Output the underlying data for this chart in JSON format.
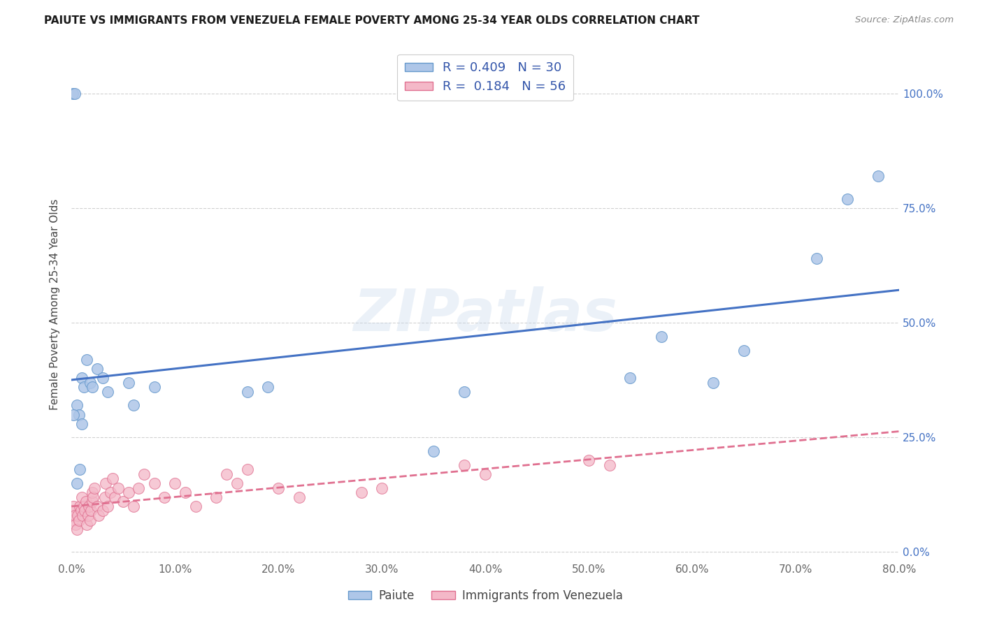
{
  "title": "PAIUTE VS IMMIGRANTS FROM VENEZUELA FEMALE POVERTY AMONG 25-34 YEAR OLDS CORRELATION CHART",
  "source": "Source: ZipAtlas.com",
  "ylabel": "Female Poverty Among 25-34 Year Olds",
  "xlim": [
    0.0,
    0.8
  ],
  "ylim": [
    -0.02,
    1.1
  ],
  "legend_label1": "Paiute",
  "legend_label2": "Immigrants from Venezuela",
  "R1": "0.409",
  "N1": "30",
  "R2": "0.184",
  "N2": "56",
  "color_paiute_fill": "#aec6e8",
  "color_paiute_edge": "#6699cc",
  "color_venezuela_fill": "#f4b8c8",
  "color_venezuela_edge": "#e07090",
  "color_paiute_line": "#4472c4",
  "color_venezuela_line": "#e07090",
  "background": "#ffffff",
  "grid_color": "#cccccc",
  "watermark": "ZIPatlas",
  "paiute_x": [
    0.001,
    0.003,
    0.005,
    0.007,
    0.01,
    0.012,
    0.015,
    0.018,
    0.02,
    0.025,
    0.03,
    0.035,
    0.055,
    0.06,
    0.08,
    0.17,
    0.19,
    0.35,
    0.38,
    0.54,
    0.57,
    0.62,
    0.65,
    0.72,
    0.75,
    0.78,
    0.01,
    0.005,
    0.002,
    0.008
  ],
  "paiute_y": [
    1.0,
    1.0,
    0.32,
    0.3,
    0.38,
    0.36,
    0.42,
    0.37,
    0.36,
    0.4,
    0.38,
    0.35,
    0.37,
    0.32,
    0.36,
    0.35,
    0.36,
    0.22,
    0.35,
    0.38,
    0.47,
    0.37,
    0.44,
    0.64,
    0.77,
    0.82,
    0.28,
    0.15,
    0.3,
    0.18
  ],
  "venezuela_x": [
    0.0,
    0.001,
    0.002,
    0.003,
    0.004,
    0.005,
    0.006,
    0.007,
    0.008,
    0.009,
    0.01,
    0.011,
    0.012,
    0.013,
    0.014,
    0.015,
    0.016,
    0.017,
    0.018,
    0.019,
    0.02,
    0.02,
    0.021,
    0.022,
    0.025,
    0.026,
    0.03,
    0.032,
    0.033,
    0.035,
    0.038,
    0.04,
    0.042,
    0.045,
    0.05,
    0.055,
    0.06,
    0.065,
    0.07,
    0.08,
    0.09,
    0.1,
    0.11,
    0.12,
    0.14,
    0.15,
    0.16,
    0.17,
    0.2,
    0.22,
    0.28,
    0.3,
    0.38,
    0.4,
    0.5,
    0.52
  ],
  "venezuela_y": [
    0.09,
    0.07,
    0.1,
    0.08,
    0.06,
    0.05,
    0.08,
    0.07,
    0.1,
    0.09,
    0.12,
    0.08,
    0.1,
    0.09,
    0.11,
    0.06,
    0.08,
    0.1,
    0.07,
    0.09,
    0.11,
    0.13,
    0.12,
    0.14,
    0.1,
    0.08,
    0.09,
    0.12,
    0.15,
    0.1,
    0.13,
    0.16,
    0.12,
    0.14,
    0.11,
    0.13,
    0.1,
    0.14,
    0.17,
    0.15,
    0.12,
    0.15,
    0.13,
    0.1,
    0.12,
    0.17,
    0.15,
    0.18,
    0.14,
    0.12,
    0.13,
    0.14,
    0.19,
    0.17,
    0.2,
    0.19
  ]
}
